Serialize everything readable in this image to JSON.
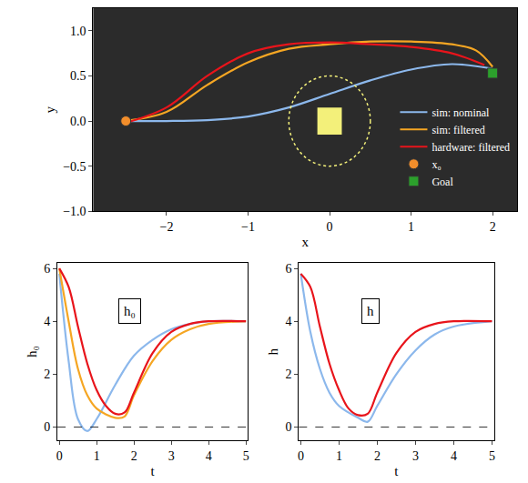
{
  "chart_data": [
    {
      "type": "line",
      "xlabel": "x",
      "ylabel": "y",
      "xlim": [
        -2.9,
        2.3
      ],
      "ylim": [
        -1.0,
        1.25
      ],
      "xticks": [
        {
          "value": -2,
          "label": "−2"
        },
        {
          "value": -1,
          "label": "−1"
        },
        0,
        1,
        2
      ],
      "yticks": [
        {
          "value": -1.0,
          "label": "−1.0"
        },
        {
          "value": -0.5,
          "label": "−0.5"
        },
        {
          "value": 0.0,
          "label": "0.0"
        },
        {
          "value": 0.5,
          "label": "0.5"
        },
        {
          "value": 1.0,
          "label": "1.0"
        }
      ],
      "grid": false,
      "legend": "right",
      "obstacle": {
        "center": [
          0,
          0
        ],
        "radius": 0.5,
        "side": 0.3,
        "color": "#f3f07a"
      },
      "series": [
        {
          "name": "sim: nominal",
          "color": "#8cb8ec",
          "type": "line",
          "line_style": "solid",
          "x": [
            -2.5,
            -2.0,
            -1.5,
            -1.0,
            -0.5,
            0.0,
            0.5,
            1.0,
            1.5,
            2.0
          ],
          "y": [
            0.0,
            0.0,
            0.01,
            0.05,
            0.15,
            0.3,
            0.45,
            0.57,
            0.63,
            0.58
          ]
        },
        {
          "name": "sim: filtered",
          "color": "#f5a623",
          "type": "line",
          "line_style": "solid",
          "x": [
            -2.5,
            -2.0,
            -1.5,
            -1.0,
            -0.5,
            0.0,
            0.5,
            1.0,
            1.5,
            1.8,
            2.0
          ],
          "y": [
            0.0,
            0.1,
            0.4,
            0.65,
            0.8,
            0.85,
            0.88,
            0.88,
            0.85,
            0.78,
            0.6
          ]
        },
        {
          "name": "hardware: filtered",
          "color": "#e8141b",
          "type": "line",
          "line_style": "solid",
          "x": [
            -2.5,
            -2.0,
            -1.5,
            -1.0,
            -0.5,
            0.0,
            0.5,
            1.0,
            1.5,
            1.9
          ],
          "y": [
            -0.02,
            0.15,
            0.5,
            0.75,
            0.85,
            0.87,
            0.85,
            0.82,
            0.75,
            0.62
          ]
        },
        {
          "name": "x₀",
          "color": "#f28e2b",
          "type": "scatter",
          "marker": "circle",
          "x": [
            -2.5
          ],
          "y": [
            0.0
          ]
        },
        {
          "name": "Goal",
          "color": "#2ca02c",
          "type": "scatter",
          "marker": "square",
          "x": [
            2.0
          ],
          "y": [
            0.53
          ]
        }
      ]
    },
    {
      "type": "line",
      "xlabel": "t",
      "ylabel": "h₀",
      "annotation": "h₀",
      "xlim": [
        -0.05,
        5.05
      ],
      "ylim": [
        -0.5,
        6.2
      ],
      "xticks": [
        0,
        1,
        2,
        3,
        4,
        5
      ],
      "yticks": [
        0,
        2,
        4,
        6
      ],
      "grid": false,
      "reference_line": 0,
      "series": [
        {
          "name": "sim: nominal",
          "color": "#8cb8ec",
          "type": "line",
          "x": [
            0,
            0.25,
            0.5,
            0.75,
            1.0,
            1.5,
            2.0,
            2.5,
            3.0,
            3.5,
            4.0,
            5.0
          ],
          "y": [
            5.8,
            2.5,
            0.3,
            -0.15,
            0.3,
            1.6,
            2.7,
            3.3,
            3.7,
            3.9,
            4.0,
            4.0
          ]
        },
        {
          "name": "sim: filtered",
          "color": "#f5a623",
          "type": "line",
          "x": [
            0,
            0.25,
            0.5,
            0.75,
            1.0,
            1.5,
            1.75,
            2.0,
            2.5,
            3.0,
            3.5,
            4.0,
            5.0
          ],
          "y": [
            6.0,
            4.0,
            2.2,
            1.2,
            0.7,
            0.35,
            0.4,
            1.2,
            2.5,
            3.3,
            3.7,
            3.9,
            4.0
          ]
        },
        {
          "name": "hardware: filtered",
          "color": "#e8141b",
          "type": "line",
          "x": [
            0,
            0.25,
            0.5,
            0.75,
            1.0,
            1.25,
            1.5,
            1.75,
            2.0,
            2.5,
            3.0,
            3.5,
            4.0,
            5.0
          ],
          "y": [
            6.0,
            5.3,
            3.8,
            2.4,
            1.4,
            0.8,
            0.5,
            0.55,
            1.3,
            2.8,
            3.6,
            3.9,
            4.0,
            4.0
          ]
        }
      ]
    },
    {
      "type": "line",
      "xlabel": "t",
      "ylabel": "h",
      "annotation": "h",
      "xlim": [
        -0.05,
        5.05
      ],
      "ylim": [
        -0.5,
        6.2
      ],
      "xticks": [
        0,
        1,
        2,
        3,
        4,
        5
      ],
      "yticks": [
        0,
        2,
        4,
        6
      ],
      "grid": false,
      "reference_line": 0,
      "series": [
        {
          "name": "sim: nominal",
          "color": "#8cb8ec",
          "type": "line",
          "x": [
            0,
            0.25,
            0.5,
            0.75,
            1.0,
            1.5,
            1.75,
            2.0,
            2.5,
            3.0,
            3.5,
            4.0,
            5.0
          ],
          "y": [
            5.8,
            3.6,
            2.2,
            1.3,
            0.8,
            0.35,
            0.2,
            0.8,
            2.0,
            2.9,
            3.5,
            3.8,
            4.0
          ]
        },
        {
          "name": "hardware: filtered",
          "color": "#e8141b",
          "type": "line",
          "x": [
            0,
            0.25,
            0.5,
            0.75,
            1.0,
            1.25,
            1.5,
            1.75,
            2.0,
            2.5,
            3.0,
            3.5,
            4.0,
            5.0
          ],
          "y": [
            5.8,
            5.3,
            3.8,
            2.4,
            1.4,
            0.7,
            0.45,
            0.5,
            1.3,
            2.8,
            3.6,
            3.9,
            4.0,
            4.0
          ]
        }
      ]
    }
  ]
}
